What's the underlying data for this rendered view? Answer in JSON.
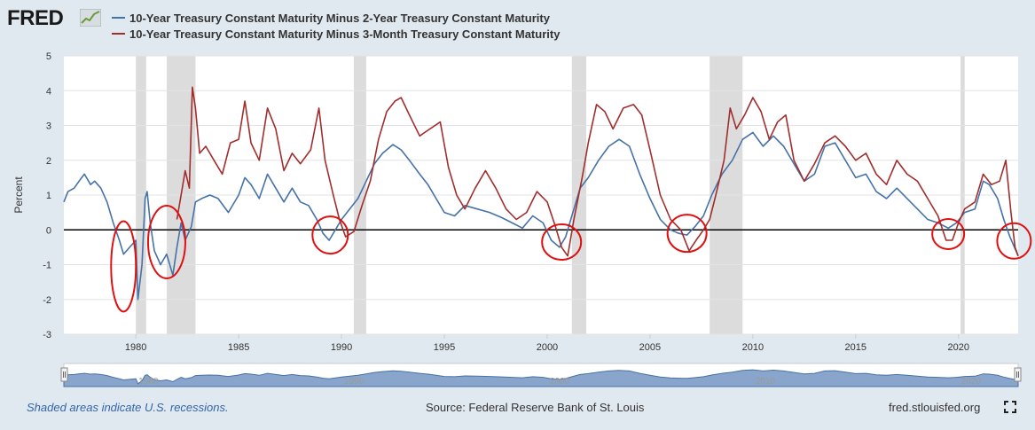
{
  "header": {
    "logo_text": "FRED",
    "logo_icon": "fred-chart-icon"
  },
  "footer": {
    "note": "Shaded areas indicate U.S. recessions.",
    "source": "Source: Federal Reserve Bank of St. Louis",
    "site": "fred.stlouisfed.org",
    "fullscreen_icon": "expand-icon"
  },
  "chart_data": {
    "type": "line",
    "title": "",
    "xlabel": "",
    "ylabel": "Percent",
    "xlim": [
      1976.5,
      2022.9
    ],
    "ylim": [
      -3,
      5
    ],
    "yticks": [
      5,
      4,
      3,
      2,
      1,
      0,
      -1,
      -2,
      -3
    ],
    "xticks": [
      1980,
      1985,
      1990,
      1995,
      2000,
      2005,
      2010,
      2015,
      2020
    ],
    "grid": true,
    "legend": "top-left",
    "recessions": [
      [
        1980.0,
        1980.5
      ],
      [
        1981.5,
        1982.9
      ],
      [
        1990.6,
        1991.2
      ],
      [
        2001.2,
        2001.9
      ],
      [
        2007.9,
        2009.5
      ],
      [
        2020.1,
        2020.3
      ]
    ],
    "highlight_circles": [
      {
        "x": 1979.4,
        "y": -1.05
      },
      {
        "x": 1981.5,
        "y": -0.35
      },
      {
        "x": 1989.45,
        "y": -0.15
      },
      {
        "x": 2000.7,
        "y": -0.35
      },
      {
        "x": 2006.8,
        "y": -0.1
      },
      {
        "x": 2019.5,
        "y": -0.12
      },
      {
        "x": 2022.7,
        "y": -0.32
      }
    ],
    "series": [
      {
        "name": "10-Year Treasury Constant Maturity Minus 2-Year Treasury Constant Maturity",
        "color": "#4572a7",
        "points": [
          [
            1976.5,
            0.8
          ],
          [
            1976.7,
            1.1
          ],
          [
            1977.0,
            1.2
          ],
          [
            1977.3,
            1.45
          ],
          [
            1977.5,
            1.6
          ],
          [
            1977.8,
            1.3
          ],
          [
            1978.0,
            1.4
          ],
          [
            1978.3,
            1.2
          ],
          [
            1978.6,
            0.8
          ],
          [
            1978.9,
            0.2
          ],
          [
            1979.2,
            -0.3
          ],
          [
            1979.4,
            -0.7
          ],
          [
            1979.7,
            -0.5
          ],
          [
            1980.0,
            -0.3
          ],
          [
            1980.1,
            -2.0
          ],
          [
            1980.3,
            -1.0
          ],
          [
            1980.45,
            0.9
          ],
          [
            1980.55,
            1.1
          ],
          [
            1980.7,
            0.2
          ],
          [
            1980.9,
            -0.6
          ],
          [
            1981.2,
            -1.0
          ],
          [
            1981.5,
            -0.7
          ],
          [
            1981.8,
            -1.3
          ],
          [
            1982.0,
            -0.5
          ],
          [
            1982.2,
            0.2
          ],
          [
            1982.4,
            -0.3
          ],
          [
            1982.7,
            0.1
          ],
          [
            1982.9,
            0.8
          ],
          [
            1983.2,
            0.9
          ],
          [
            1983.6,
            1.0
          ],
          [
            1984.0,
            0.9
          ],
          [
            1984.5,
            0.5
          ],
          [
            1985.0,
            1.0
          ],
          [
            1985.3,
            1.5
          ],
          [
            1985.6,
            1.3
          ],
          [
            1986.0,
            0.9
          ],
          [
            1986.4,
            1.6
          ],
          [
            1986.8,
            1.2
          ],
          [
            1987.2,
            0.8
          ],
          [
            1987.6,
            1.2
          ],
          [
            1988.0,
            0.8
          ],
          [
            1988.4,
            0.7
          ],
          [
            1988.8,
            0.3
          ],
          [
            1989.1,
            -0.1
          ],
          [
            1989.4,
            -0.3
          ],
          [
            1989.7,
            0.0
          ],
          [
            1990.0,
            0.3
          ],
          [
            1990.4,
            0.6
          ],
          [
            1990.8,
            0.9
          ],
          [
            1991.2,
            1.4
          ],
          [
            1991.6,
            1.9
          ],
          [
            1992.0,
            2.2
          ],
          [
            1992.5,
            2.45
          ],
          [
            1992.9,
            2.3
          ],
          [
            1993.3,
            2.0
          ],
          [
            1993.8,
            1.6
          ],
          [
            1994.2,
            1.3
          ],
          [
            1994.6,
            0.9
          ],
          [
            1995.0,
            0.5
          ],
          [
            1995.5,
            0.4
          ],
          [
            1996.0,
            0.7
          ],
          [
            1996.6,
            0.6
          ],
          [
            1997.2,
            0.5
          ],
          [
            1997.8,
            0.35
          ],
          [
            1998.3,
            0.2
          ],
          [
            1998.8,
            0.05
          ],
          [
            1999.3,
            0.4
          ],
          [
            1999.8,
            0.2
          ],
          [
            2000.2,
            -0.3
          ],
          [
            2000.6,
            -0.5
          ],
          [
            2000.9,
            -0.2
          ],
          [
            2001.2,
            0.4
          ],
          [
            2001.6,
            1.2
          ],
          [
            2002.0,
            1.5
          ],
          [
            2002.5,
            2.0
          ],
          [
            2003.0,
            2.4
          ],
          [
            2003.5,
            2.6
          ],
          [
            2004.0,
            2.4
          ],
          [
            2004.5,
            1.6
          ],
          [
            2005.0,
            0.9
          ],
          [
            2005.5,
            0.3
          ],
          [
            2006.0,
            0.0
          ],
          [
            2006.4,
            -0.1
          ],
          [
            2006.8,
            -0.15
          ],
          [
            2007.2,
            0.1
          ],
          [
            2007.6,
            0.4
          ],
          [
            2008.0,
            1.0
          ],
          [
            2008.5,
            1.6
          ],
          [
            2009.0,
            2.0
          ],
          [
            2009.5,
            2.6
          ],
          [
            2010.0,
            2.8
          ],
          [
            2010.5,
            2.4
          ],
          [
            2011.0,
            2.7
          ],
          [
            2011.5,
            2.4
          ],
          [
            2012.0,
            1.9
          ],
          [
            2012.5,
            1.4
          ],
          [
            2013.0,
            1.6
          ],
          [
            2013.5,
            2.4
          ],
          [
            2014.0,
            2.5
          ],
          [
            2014.5,
            2.0
          ],
          [
            2015.0,
            1.5
          ],
          [
            2015.5,
            1.6
          ],
          [
            2016.0,
            1.1
          ],
          [
            2016.5,
            0.9
          ],
          [
            2017.0,
            1.2
          ],
          [
            2017.5,
            0.9
          ],
          [
            2018.0,
            0.6
          ],
          [
            2018.5,
            0.3
          ],
          [
            2019.0,
            0.2
          ],
          [
            2019.5,
            0.05
          ],
          [
            2019.9,
            0.2
          ],
          [
            2020.3,
            0.5
          ],
          [
            2020.8,
            0.6
          ],
          [
            2021.2,
            1.4
          ],
          [
            2021.5,
            1.3
          ],
          [
            2021.9,
            0.9
          ],
          [
            2022.2,
            0.3
          ],
          [
            2022.5,
            -0.2
          ],
          [
            2022.9,
            -0.75
          ]
        ]
      },
      {
        "name": "10-Year Treasury Constant Maturity Minus 3-Month Treasury Constant Maturity",
        "color": "#a12d2d",
        "points": [
          [
            1982.0,
            0.3
          ],
          [
            1982.2,
            1.0
          ],
          [
            1982.4,
            1.7
          ],
          [
            1982.6,
            1.2
          ],
          [
            1982.75,
            4.1
          ],
          [
            1982.9,
            3.5
          ],
          [
            1983.1,
            2.2
          ],
          [
            1983.4,
            2.4
          ],
          [
            1983.8,
            2.0
          ],
          [
            1984.2,
            1.6
          ],
          [
            1984.6,
            2.5
          ],
          [
            1985.0,
            2.6
          ],
          [
            1985.3,
            3.7
          ],
          [
            1985.6,
            2.5
          ],
          [
            1986.0,
            2.0
          ],
          [
            1986.4,
            3.5
          ],
          [
            1986.8,
            2.9
          ],
          [
            1987.2,
            1.7
          ],
          [
            1987.6,
            2.2
          ],
          [
            1988.0,
            1.9
          ],
          [
            1988.5,
            2.3
          ],
          [
            1988.9,
            3.5
          ],
          [
            1989.2,
            2.0
          ],
          [
            1989.6,
            1.0
          ],
          [
            1989.9,
            0.3
          ],
          [
            1990.2,
            -0.2
          ],
          [
            1990.6,
            -0.05
          ],
          [
            1991.0,
            0.7
          ],
          [
            1991.4,
            1.4
          ],
          [
            1991.8,
            2.6
          ],
          [
            1992.2,
            3.4
          ],
          [
            1992.6,
            3.7
          ],
          [
            1992.9,
            3.8
          ],
          [
            1993.3,
            3.3
          ],
          [
            1993.8,
            2.7
          ],
          [
            1994.3,
            2.9
          ],
          [
            1994.8,
            3.1
          ],
          [
            1995.2,
            1.8
          ],
          [
            1995.6,
            1.0
          ],
          [
            1996.0,
            0.6
          ],
          [
            1996.5,
            1.2
          ],
          [
            1997.0,
            1.7
          ],
          [
            1997.5,
            1.2
          ],
          [
            1998.0,
            0.6
          ],
          [
            1998.5,
            0.3
          ],
          [
            1999.0,
            0.5
          ],
          [
            1999.5,
            1.1
          ],
          [
            2000.0,
            0.8
          ],
          [
            2000.4,
            0.1
          ],
          [
            2000.7,
            -0.5
          ],
          [
            2001.0,
            -0.75
          ],
          [
            2001.3,
            0.3
          ],
          [
            2001.7,
            1.5
          ],
          [
            2002.0,
            2.5
          ],
          [
            2002.4,
            3.6
          ],
          [
            2002.8,
            3.4
          ],
          [
            2003.2,
            2.9
          ],
          [
            2003.7,
            3.5
          ],
          [
            2004.2,
            3.6
          ],
          [
            2004.6,
            3.3
          ],
          [
            2005.0,
            2.3
          ],
          [
            2005.5,
            1.0
          ],
          [
            2006.0,
            0.3
          ],
          [
            2006.5,
            0.0
          ],
          [
            2006.9,
            -0.6
          ],
          [
            2007.3,
            -0.25
          ],
          [
            2007.6,
            0.0
          ],
          [
            2007.9,
            0.3
          ],
          [
            2008.2,
            1.0
          ],
          [
            2008.6,
            2.0
          ],
          [
            2008.9,
            3.5
          ],
          [
            2009.2,
            2.9
          ],
          [
            2009.6,
            3.3
          ],
          [
            2010.0,
            3.8
          ],
          [
            2010.4,
            3.4
          ],
          [
            2010.8,
            2.6
          ],
          [
            2011.2,
            3.1
          ],
          [
            2011.6,
            3.3
          ],
          [
            2012.0,
            2.0
          ],
          [
            2012.5,
            1.4
          ],
          [
            2013.0,
            1.9
          ],
          [
            2013.5,
            2.5
          ],
          [
            2014.0,
            2.7
          ],
          [
            2014.5,
            2.4
          ],
          [
            2015.0,
            2.0
          ],
          [
            2015.5,
            2.2
          ],
          [
            2016.0,
            1.6
          ],
          [
            2016.5,
            1.3
          ],
          [
            2017.0,
            2.0
          ],
          [
            2017.5,
            1.6
          ],
          [
            2018.0,
            1.4
          ],
          [
            2018.5,
            0.9
          ],
          [
            2019.0,
            0.4
          ],
          [
            2019.4,
            -0.3
          ],
          [
            2019.7,
            -0.3
          ],
          [
            2020.0,
            0.2
          ],
          [
            2020.3,
            0.6
          ],
          [
            2020.8,
            0.8
          ],
          [
            2021.2,
            1.6
          ],
          [
            2021.6,
            1.3
          ],
          [
            2022.0,
            1.4
          ],
          [
            2022.3,
            2.0
          ],
          [
            2022.55,
            0.5
          ],
          [
            2022.75,
            -0.5
          ],
          [
            2022.9,
            -0.75
          ]
        ]
      }
    ],
    "navigator": {
      "labels": [
        "1980",
        "1990",
        "2000",
        "2010",
        "2020"
      ]
    }
  }
}
